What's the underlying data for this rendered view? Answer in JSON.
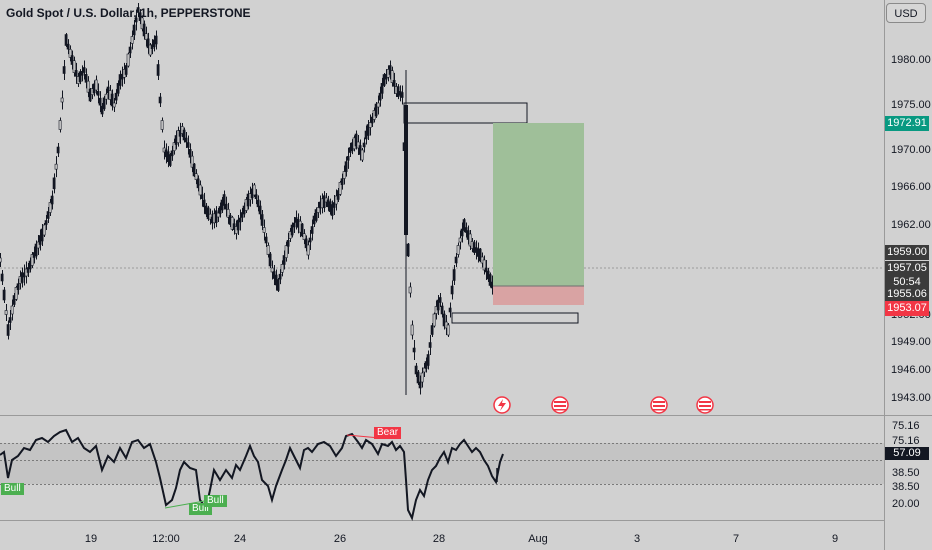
{
  "header": {
    "title": "Gold Spot / U.S. Dollar, 1h, PEPPERSTONE",
    "currency": "USD"
  },
  "price_axis": {
    "ticks": [
      "1980.00",
      "1975.00",
      "1970.00",
      "1966.00",
      "1962.00",
      "1952.00",
      "1949.00",
      "1946.00",
      "1943.00"
    ],
    "target_label": "1972.91",
    "entry_label": "1959.00",
    "last_price_label": "1957.05",
    "countdown_label": "50:54",
    "current_label": "1955.06",
    "stop_label": "1953.07"
  },
  "rsi_axis": {
    "ticks": [
      "75.16",
      "75.16",
      "38.50",
      "38.50",
      "20.00"
    ],
    "value_label": "57.09",
    "bull_label": "Bull",
    "bear_label": "Bear"
  },
  "time_axis": {
    "labels": [
      "19",
      "12:00",
      "24",
      "26",
      "28",
      "Aug",
      "3",
      "7",
      "9"
    ]
  },
  "colors": {
    "background": "#d1d1d1",
    "candle": "#131722",
    "profit_zone": "#9fbf99",
    "loss_zone": "#d9a3a3",
    "target_tag": "#089981",
    "stop_tag": "#f23645",
    "bull": "#4caf50",
    "bear": "#f23645"
  },
  "event_icons": [
    "lightning-icon",
    "us-flag-icon",
    "us-flag-icon",
    "us-flag-icon"
  ]
}
